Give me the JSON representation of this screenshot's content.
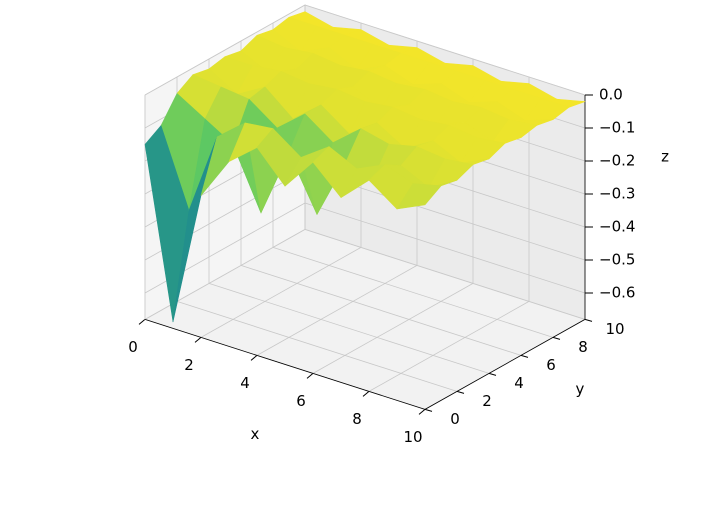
{
  "chart_data": {
    "type": "surface",
    "colormap": "viridis",
    "grid": true,
    "xlabel": "x",
    "ylabel": "y",
    "zlabel": "z",
    "x": [
      0,
      1,
      2,
      3,
      4,
      5,
      6,
      7,
      8,
      9,
      10
    ],
    "y": [
      0,
      1,
      2,
      3,
      4,
      5,
      6,
      7,
      8,
      9,
      10
    ],
    "z": [
      [
        -0.15,
        -0.66,
        -0.25,
        -0.12,
        -0.05,
        -0.14,
        -0.04,
        -0.12,
        -0.04,
        -0.1,
        -0.06
      ],
      [
        -0.12,
        -0.35,
        -0.1,
        -0.03,
        -0.02,
        -0.08,
        -0.02,
        -0.06,
        -0.02,
        -0.05,
        -0.03
      ],
      [
        -0.05,
        -0.1,
        -0.15,
        -0.33,
        -0.12,
        -0.28,
        -0.1,
        -0.12,
        -0.05,
        -0.09,
        -0.04
      ],
      [
        -0.02,
        -0.03,
        -0.04,
        -0.1,
        -0.03,
        -0.09,
        -0.02,
        -0.04,
        -0.02,
        -0.03,
        -0.02
      ],
      [
        -0.03,
        -0.08,
        -0.03,
        -0.1,
        -0.03,
        -0.09,
        -0.03,
        -0.08,
        -0.03,
        -0.07,
        -0.03
      ],
      [
        -0.02,
        -0.02,
        -0.01,
        -0.02,
        -0.01,
        -0.02,
        -0.01,
        -0.02,
        -0.01,
        -0.02,
        -0.01
      ],
      [
        -0.03,
        -0.07,
        -0.03,
        -0.08,
        -0.03,
        -0.07,
        -0.03,
        -0.06,
        -0.03,
        -0.06,
        -0.02
      ],
      [
        -0.01,
        -0.02,
        -0.01,
        -0.02,
        -0.01,
        -0.02,
        -0.01,
        -0.02,
        -0.01,
        -0.02,
        -0.01
      ],
      [
        -0.02,
        -0.06,
        -0.02,
        -0.06,
        -0.02,
        -0.05,
        -0.02,
        -0.05,
        -0.02,
        -0.05,
        -0.02
      ],
      [
        -0.01,
        -0.01,
        -0.01,
        -0.01,
        -0.01,
        -0.01,
        -0.01,
        -0.01,
        -0.01,
        -0.01,
        -0.01
      ],
      [
        -0.02,
        -0.04,
        -0.02,
        -0.04,
        -0.02,
        -0.04,
        -0.02,
        -0.04,
        -0.02,
        -0.04,
        -0.02
      ]
    ],
    "xlim": [
      0,
      10
    ],
    "ylim": [
      0,
      10
    ],
    "zlim": [
      -0.68,
      0
    ],
    "xticks": [
      0,
      2,
      4,
      6,
      8,
      10
    ],
    "yticks": [
      0,
      2,
      4,
      6,
      8,
      10
    ],
    "zticks": [
      {
        "value": 0,
        "label": "0.0"
      },
      {
        "value": -0.1,
        "label": "−0.1"
      },
      {
        "value": -0.2,
        "label": "−0.2"
      },
      {
        "value": -0.3,
        "label": "−0.3"
      },
      {
        "value": -0.4,
        "label": "−0.4"
      },
      {
        "value": -0.5,
        "label": "−0.5"
      },
      {
        "value": -0.6,
        "label": "−0.6"
      }
    ]
  }
}
